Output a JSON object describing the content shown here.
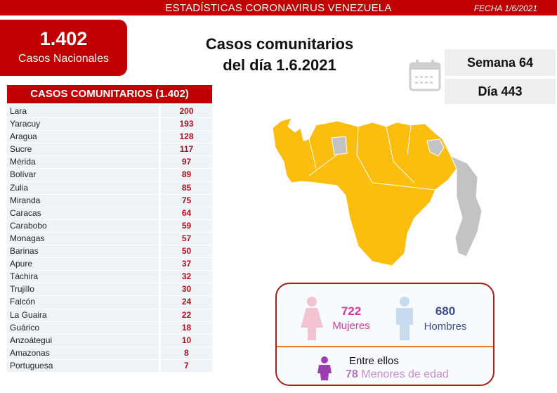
{
  "header": {
    "title": "ESTADÍSTICAS CORONAVIRUS VENEZUELA",
    "date": "FECHA 1/6/2021"
  },
  "national": {
    "value": "1.402",
    "label": "Casos Nacionales"
  },
  "title": {
    "line1": "Casos comunitarios",
    "line2": "del día 1.6.2021"
  },
  "week": "Semana 64",
  "day": "Día 443",
  "table": {
    "header": "CASOS COMUNITARIOS (1.402)",
    "rows": [
      {
        "state": "Lara",
        "cases": "200"
      },
      {
        "state": "Yaracuy",
        "cases": "193"
      },
      {
        "state": "Aragua",
        "cases": "128"
      },
      {
        "state": "Sucre",
        "cases": "117"
      },
      {
        "state": "Mérida",
        "cases": "97"
      },
      {
        "state": "Bolívar",
        "cases": "89"
      },
      {
        "state": "Zulia",
        "cases": "85"
      },
      {
        "state": "Miranda",
        "cases": "75"
      },
      {
        "state": "Caracas",
        "cases": "64"
      },
      {
        "state": "Carabobo",
        "cases": "59"
      },
      {
        "state": "Monagas",
        "cases": "57"
      },
      {
        "state": "Barinas",
        "cases": "50"
      },
      {
        "state": "Apure",
        "cases": "37"
      },
      {
        "state": "Táchira",
        "cases": "32"
      },
      {
        "state": "Trujillo",
        "cases": "30"
      },
      {
        "state": "Falcón",
        "cases": "24"
      },
      {
        "state": "La Guaira",
        "cases": "22"
      },
      {
        "state": "Guárico",
        "cases": "18"
      },
      {
        "state": "Anzoátegui",
        "cases": "10"
      },
      {
        "state": "Amazonas",
        "cases": "8"
      },
      {
        "state": "Portuguesa",
        "cases": "7"
      }
    ]
  },
  "gender": {
    "women_count": "722",
    "women_label": "Mujeres",
    "men_count": "680",
    "men_label": "Hombres",
    "minors_intro": "Entre ellos",
    "minors_count": "78",
    "minors_label": "Menores de edad"
  },
  "colors": {
    "red": "#c00000",
    "map_cases": "#fbbd0e",
    "map_none": "#c3c3c3",
    "women": "#d63a9a",
    "men": "#3a4f8a",
    "minors": "#9b3fb0"
  }
}
